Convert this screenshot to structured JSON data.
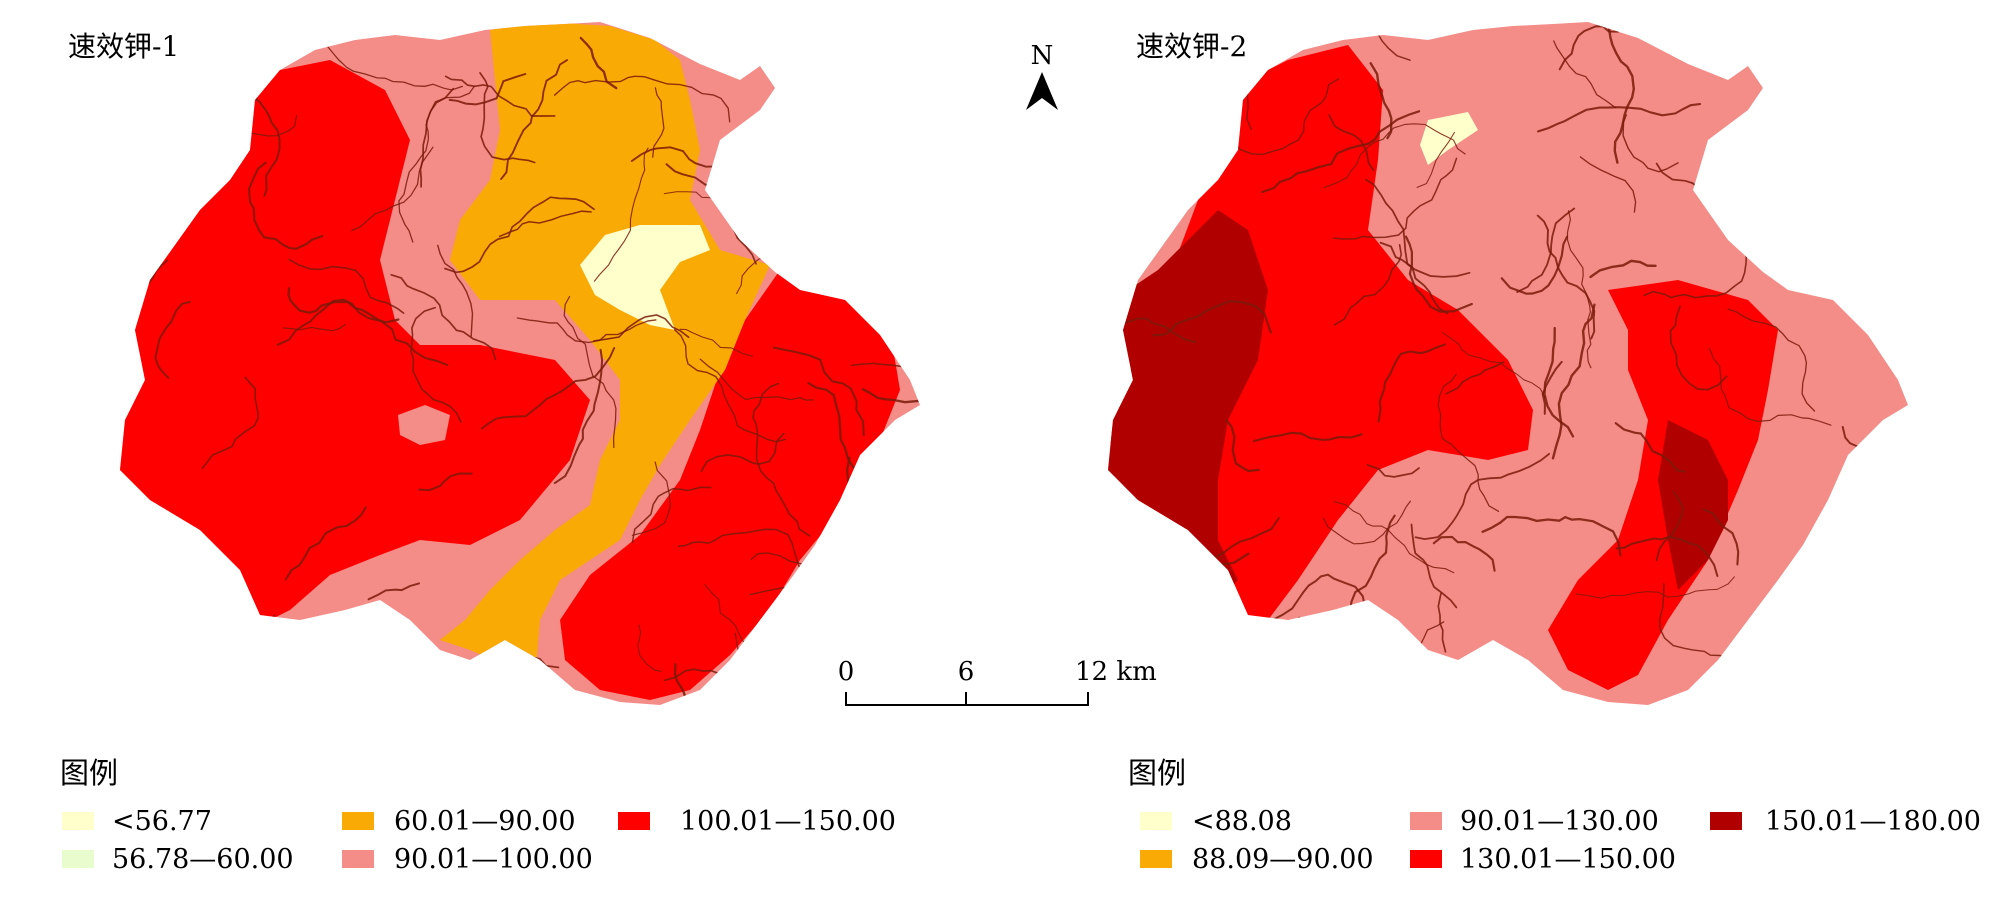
{
  "maps": [
    {
      "title": "速效钾-1",
      "legend_title": "图例",
      "zones": [
        {
          "class_index": 4,
          "label": "100.01—150.00"
        },
        {
          "class_index": 3,
          "label": "90.01—100.00"
        },
        {
          "class_index": 2,
          "label": "60.01—90.00"
        },
        {
          "class_index": 0,
          "label": "<56.77"
        }
      ],
      "legend": [
        {
          "label": "<56.77",
          "color": "#FFFFCC"
        },
        {
          "label": "56.78—60.00",
          "color": "#E8FCCD"
        },
        {
          "label": "60.01—90.00",
          "color": "#FAAA05"
        },
        {
          "label": "90.01—100.00",
          "color": "#F48C88"
        },
        {
          "label": "100.01—150.00",
          "color": "#FF0000"
        }
      ]
    },
    {
      "title": "速效钾-2",
      "legend_title": "图例",
      "zones": [
        {
          "class_index": 2,
          "label": "90.01—130.00"
        },
        {
          "class_index": 3,
          "label": "130.01—150.00"
        },
        {
          "class_index": 4,
          "label": "150.01—180.00"
        },
        {
          "class_index": 0,
          "label": "<88.08"
        }
      ],
      "legend": [
        {
          "label": "<88.08",
          "color": "#FFFFCC"
        },
        {
          "label": "88.09—90.00",
          "color": "#FAAA05"
        },
        {
          "label": "90.01—130.00",
          "color": "#F48C88"
        },
        {
          "label": "130.01—150.00",
          "color": "#FF0000"
        },
        {
          "label": "150.01—180.00",
          "color": "#B00000"
        }
      ]
    }
  ],
  "north_arrow": {
    "label": "N",
    "icon": "north-arrow-icon"
  },
  "scale_bar": {
    "labels": [
      "0",
      "6",
      "12 km"
    ],
    "ticks_km": [
      0,
      6,
      12
    ]
  },
  "colors": {
    "river": "#7A1A0A"
  }
}
